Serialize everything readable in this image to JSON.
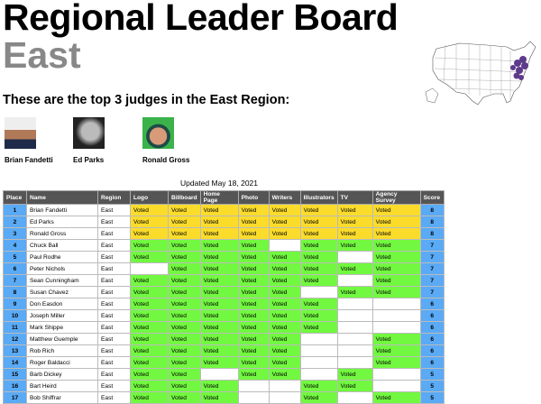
{
  "title": "Regional Leader Board",
  "region": "East",
  "subtitle": "These are the top 3 judges in the East Region:",
  "judges": [
    "Brian Fandetti",
    "Ed Parks",
    "Ronald Gross"
  ],
  "updated": "Updated May 18, 2021",
  "colors": {
    "top3": "#fbdc2b",
    "voted": "#72f840",
    "place": "#5aaaf5",
    "map_highlight": "#5e3a8c",
    "region_text": "#888888"
  },
  "table": {
    "headers": [
      "Place",
      "Name",
      "Region",
      "Logo",
      "Billboard",
      "Home Page",
      "Photo",
      "Writers",
      "Illustrators",
      "TV",
      "Agency Survey",
      "Score"
    ],
    "rows": [
      {
        "place": "1",
        "name": "Brian Fandetti",
        "region": "East",
        "votes": [
          "Voted",
          "Voted",
          "Voted",
          "Voted",
          "Voted",
          "Voted",
          "Voted",
          "Voted"
        ],
        "score": "8"
      },
      {
        "place": "2",
        "name": "Ed Parks",
        "region": "East",
        "votes": [
          "Voted",
          "Voted",
          "Voted",
          "Voted",
          "Voted",
          "Voted",
          "Voted",
          "Voted"
        ],
        "score": "8"
      },
      {
        "place": "3",
        "name": "Ronald Gross",
        "region": "East",
        "votes": [
          "Voted",
          "Voted",
          "Voted",
          "Voted",
          "Voted",
          "Voted",
          "Voted",
          "Voted"
        ],
        "score": "8"
      },
      {
        "place": "4",
        "name": "Chuck Ball",
        "region": "East",
        "votes": [
          "Voted",
          "Voted",
          "Voted",
          "Voted",
          "",
          "Voted",
          "Voted",
          "Voted"
        ],
        "score": "7"
      },
      {
        "place": "5",
        "name": "Paul Rodhe",
        "region": "East",
        "votes": [
          "Voted",
          "Voted",
          "Voted",
          "Voted",
          "Voted",
          "Voted",
          "",
          "Voted"
        ],
        "score": "7"
      },
      {
        "place": "6",
        "name": "Peter Nichols",
        "region": "East",
        "votes": [
          "",
          "Voted",
          "Voted",
          "Voted",
          "Voted",
          "Voted",
          "Voted",
          "Voted"
        ],
        "score": "7"
      },
      {
        "place": "7",
        "name": "Sean Cunningham",
        "region": "East",
        "votes": [
          "Voted",
          "Voted",
          "Voted",
          "Voted",
          "Voted",
          "Voted",
          "",
          "Voted"
        ],
        "score": "7"
      },
      {
        "place": "8",
        "name": "Susan Chavez",
        "region": "East",
        "votes": [
          "Voted",
          "Voted",
          "Voted",
          "Voted",
          "Voted",
          "",
          "Voted",
          "Voted"
        ],
        "score": "7"
      },
      {
        "place": "9",
        "name": "Don Easdon",
        "region": "East",
        "votes": [
          "Voted",
          "Voted",
          "Voted",
          "Voted",
          "Voted",
          "Voted",
          "",
          ""
        ],
        "score": "6"
      },
      {
        "place": "10",
        "name": "Joseph Miller",
        "region": "East",
        "votes": [
          "Voted",
          "Voted",
          "Voted",
          "Voted",
          "Voted",
          "Voted",
          "",
          ""
        ],
        "score": "6"
      },
      {
        "place": "11",
        "name": "Mark Shippe",
        "region": "East",
        "votes": [
          "Voted",
          "Voted",
          "Voted",
          "Voted",
          "Voted",
          "Voted",
          "",
          ""
        ],
        "score": "6"
      },
      {
        "place": "12",
        "name": "Matthew Guemple",
        "region": "East",
        "votes": [
          "Voted",
          "Voted",
          "Voted",
          "Voted",
          "Voted",
          "",
          "",
          "Voted"
        ],
        "score": "6"
      },
      {
        "place": "13",
        "name": "Rob Rich",
        "region": "East",
        "votes": [
          "Voted",
          "Voted",
          "Voted",
          "Voted",
          "Voted",
          "",
          "",
          "Voted"
        ],
        "score": "6"
      },
      {
        "place": "14",
        "name": "Roger Baldacci",
        "region": "East",
        "votes": [
          "Voted",
          "Voted",
          "Voted",
          "Voted",
          "Voted",
          "",
          "",
          "Voted"
        ],
        "score": "6"
      },
      {
        "place": "15",
        "name": "Barb Dickey",
        "region": "East",
        "votes": [
          "Voted",
          "Voted",
          "",
          "Voted",
          "Voted",
          "",
          "Voted",
          ""
        ],
        "score": "5"
      },
      {
        "place": "16",
        "name": "Bart Heird",
        "region": "East",
        "votes": [
          "Voted",
          "Voted",
          "Voted",
          "",
          "",
          "Voted",
          "Voted",
          ""
        ],
        "score": "5"
      },
      {
        "place": "17",
        "name": "Bob Shiffrar",
        "region": "East",
        "votes": [
          "Voted",
          "Voted",
          "Voted",
          "",
          "",
          "Voted",
          "",
          "Voted"
        ],
        "score": "5"
      }
    ]
  }
}
